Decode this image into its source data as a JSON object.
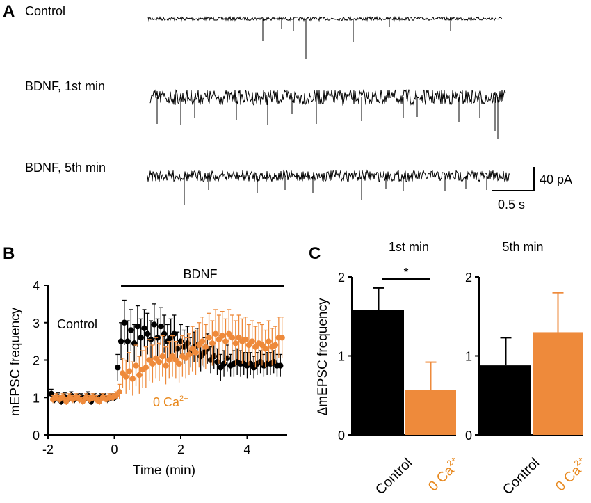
{
  "panels": {
    "a": "A",
    "b": "B",
    "c": "C"
  },
  "colors": {
    "control": "#000000",
    "ca": "#ee8a3b",
    "ca_label": "#e8891f"
  },
  "traces": {
    "labels": [
      "Control",
      "BDNF, 1st min",
      "BDNF, 5th min"
    ],
    "scale_bar": {
      "y_label": "40 pA",
      "x_label": "0.5 s"
    }
  },
  "chart_data": [
    {
      "type": "scatter",
      "panel": "B",
      "title": "",
      "xlabel": "Time (min)",
      "ylabel": "mEPSC frequency",
      "xlim": [
        -2,
        5
      ],
      "ylim": [
        0,
        4
      ],
      "xticks": [
        -2,
        0,
        2,
        4
      ],
      "yticks": [
        0,
        1,
        2,
        3,
        4
      ],
      "bar_label": "BDNF",
      "bar_range": [
        0.2,
        5.1
      ],
      "series_label_control": "Control",
      "series_label_ca": "0 Ca",
      "series_label_ca_sup": "2+",
      "series": [
        {
          "name": "Control",
          "x": [
            -1.9,
            -1.8,
            -1.7,
            -1.6,
            -1.5,
            -1.4,
            -1.3,
            -1.2,
            -1.1,
            -1.0,
            -0.9,
            -0.8,
            -0.7,
            -0.6,
            -0.5,
            -0.4,
            -0.3,
            -0.2,
            -0.1,
            0.0,
            0.1,
            0.2,
            0.3,
            0.4,
            0.5,
            0.6,
            0.7,
            0.8,
            0.9,
            1.0,
            1.1,
            1.2,
            1.3,
            1.4,
            1.5,
            1.6,
            1.7,
            1.8,
            1.9,
            2.0,
            2.1,
            2.2,
            2.3,
            2.4,
            2.5,
            2.6,
            2.7,
            2.8,
            2.9,
            3.0,
            3.1,
            3.2,
            3.3,
            3.4,
            3.5,
            3.6,
            3.7,
            3.8,
            3.9,
            4.0,
            4.1,
            4.2,
            4.3,
            4.4,
            4.5,
            4.6,
            4.7,
            4.8,
            4.9,
            5.0
          ],
          "y": [
            1.1,
            0.95,
            1.0,
            0.9,
            1.0,
            0.95,
            1.05,
            0.95,
            1.0,
            1.0,
            0.95,
            1.05,
            0.9,
            1.0,
            0.95,
            1.0,
            1.0,
            0.95,
            1.0,
            1.0,
            1.8,
            2.5,
            3.0,
            2.5,
            2.8,
            2.45,
            2.9,
            2.6,
            2.85,
            2.7,
            2.55,
            2.95,
            2.6,
            2.9,
            2.7,
            2.5,
            2.6,
            2.7,
            2.3,
            2.5,
            2.35,
            2.45,
            2.2,
            2.35,
            2.4,
            2.1,
            2.2,
            2.3,
            2.0,
            2.1,
            1.95,
            1.8,
            1.9,
            2.05,
            1.85,
            1.9,
            1.95,
            1.9,
            1.9,
            1.85,
            1.9,
            1.8,
            1.9,
            1.95,
            1.85,
            1.9,
            1.9,
            1.95,
            1.85,
            1.85
          ],
          "err": [
            0.12,
            0.1,
            0.12,
            0.1,
            0.12,
            0.1,
            0.1,
            0.1,
            0.1,
            0.1,
            0.1,
            0.1,
            0.1,
            0.1,
            0.1,
            0.1,
            0.1,
            0.1,
            0.1,
            0.1,
            0.35,
            0.5,
            0.6,
            0.55,
            0.55,
            0.5,
            0.55,
            0.5,
            0.5,
            0.55,
            0.5,
            0.55,
            0.5,
            0.5,
            0.5,
            0.45,
            0.5,
            0.5,
            0.45,
            0.45,
            0.45,
            0.45,
            0.4,
            0.4,
            0.45,
            0.4,
            0.4,
            0.4,
            0.35,
            0.35,
            0.35,
            0.35,
            0.35,
            0.35,
            0.3,
            0.35,
            0.35,
            0.35,
            0.3,
            0.35,
            0.3,
            0.3,
            0.3,
            0.3,
            0.3,
            0.3,
            0.3,
            0.3,
            0.3,
            0.3
          ]
        },
        {
          "name": "0 Ca2+",
          "x": [
            -1.85,
            -1.75,
            -1.65,
            -1.55,
            -1.45,
            -1.35,
            -1.25,
            -1.15,
            -1.05,
            -0.95,
            -0.85,
            -0.75,
            -0.65,
            -0.55,
            -0.45,
            -0.35,
            -0.25,
            -0.15,
            -0.05,
            0.05,
            0.15,
            0.25,
            0.35,
            0.45,
            0.55,
            0.65,
            0.75,
            0.85,
            0.95,
            1.05,
            1.15,
            1.25,
            1.35,
            1.45,
            1.55,
            1.65,
            1.75,
            1.85,
            1.95,
            2.05,
            2.15,
            2.25,
            2.35,
            2.45,
            2.55,
            2.65,
            2.75,
            2.85,
            2.95,
            3.05,
            3.15,
            3.25,
            3.35,
            3.45,
            3.55,
            3.65,
            3.75,
            3.85,
            3.95,
            4.05,
            4.15,
            4.25,
            4.35,
            4.45,
            4.55,
            4.65,
            4.75,
            4.85,
            4.95,
            5.05
          ],
          "y": [
            0.95,
            1.0,
            0.95,
            1.0,
            0.9,
            1.0,
            0.95,
            1.0,
            0.95,
            0.9,
            1.0,
            0.95,
            1.0,
            0.95,
            0.9,
            1.0,
            0.95,
            1.0,
            1.0,
            1.05,
            1.15,
            1.65,
            1.55,
            1.7,
            1.5,
            1.85,
            1.6,
            1.75,
            1.8,
            2.0,
            1.9,
            2.05,
            1.95,
            2.1,
            1.85,
            2.0,
            2.1,
            2.0,
            1.9,
            2.1,
            2.05,
            2.15,
            2.3,
            2.2,
            2.4,
            2.5,
            2.35,
            2.6,
            2.45,
            2.7,
            2.55,
            2.65,
            2.5,
            2.7,
            2.6,
            2.45,
            2.6,
            2.5,
            2.55,
            2.4,
            2.5,
            2.35,
            2.45,
            2.4,
            2.3,
            2.5,
            2.35,
            2.4,
            2.6,
            2.6
          ],
          "err": [
            0.1,
            0.1,
            0.1,
            0.1,
            0.1,
            0.1,
            0.1,
            0.1,
            0.1,
            0.1,
            0.1,
            0.1,
            0.1,
            0.1,
            0.1,
            0.1,
            0.1,
            0.1,
            0.1,
            0.1,
            0.2,
            0.4,
            0.45,
            0.5,
            0.45,
            0.55,
            0.5,
            0.5,
            0.55,
            0.55,
            0.5,
            0.55,
            0.5,
            0.55,
            0.5,
            0.5,
            0.55,
            0.5,
            0.5,
            0.55,
            0.55,
            0.55,
            0.6,
            0.6,
            0.6,
            0.65,
            0.6,
            0.65,
            0.6,
            0.65,
            0.65,
            0.65,
            0.6,
            0.65,
            0.6,
            0.6,
            0.6,
            0.6,
            0.6,
            0.55,
            0.55,
            0.55,
            0.55,
            0.55,
            0.5,
            0.55,
            0.5,
            0.5,
            0.55,
            0.55
          ]
        }
      ]
    },
    {
      "type": "bar",
      "panel": "C",
      "title": "1st min",
      "ylabel": "ΔmEPSC frequency",
      "ylim": [
        0,
        2
      ],
      "yticks": [
        0,
        1,
        2
      ],
      "categories": [
        "Control",
        "0 Ca2+"
      ],
      "cat_labels": {
        "control": "Control",
        "ca": "0 Ca",
        "ca_sup": "2+"
      },
      "values": [
        1.58,
        0.57
      ],
      "errors": [
        0.28,
        0.35
      ],
      "significance": "*"
    },
    {
      "type": "bar",
      "panel": "C",
      "title": "5th min",
      "ylabel": "",
      "ylim": [
        0,
        2
      ],
      "yticks": [
        0,
        1,
        2
      ],
      "categories": [
        "Control",
        "0 Ca2+"
      ],
      "cat_labels": {
        "control": "Control",
        "ca": "0 Ca",
        "ca_sup": "2+"
      },
      "values": [
        0.88,
        1.3
      ],
      "errors": [
        0.35,
        0.5
      ]
    }
  ]
}
